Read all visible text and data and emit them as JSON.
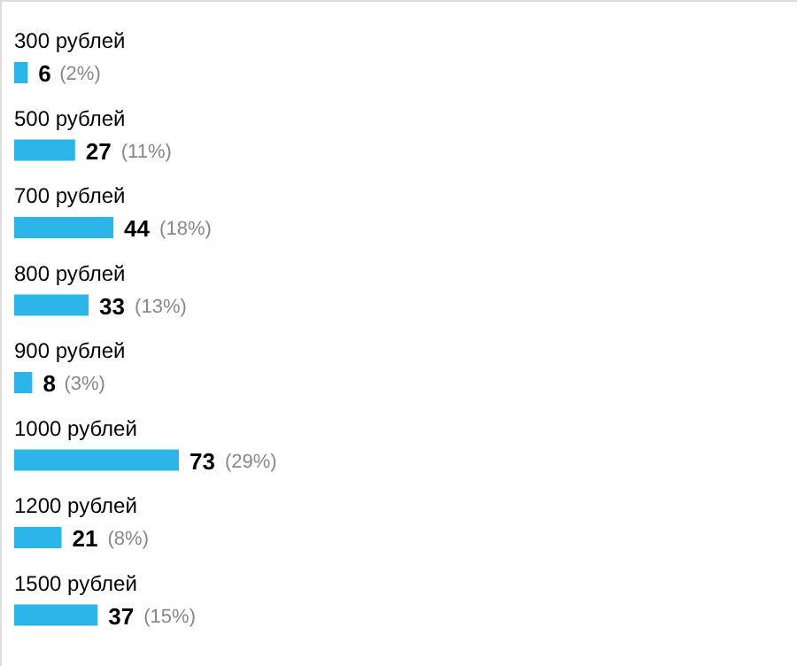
{
  "chart_data": {
    "type": "bar",
    "orientation": "horizontal",
    "categories": [
      "300 рублей",
      "500 рублей",
      "700 рублей",
      "800 рублей",
      "900 рублей",
      "1000 рублей",
      "1200 рублей",
      "1500 рублей"
    ],
    "values": [
      6,
      27,
      44,
      33,
      8,
      73,
      21,
      37
    ],
    "value_labels": [
      "6 (2%)",
      "27 (11%)",
      "44 (18%)",
      "33 (13%)",
      "8 (3%)",
      "73 (29%)",
      "21 (8%)",
      "37 (15%)"
    ],
    "color": "#2bb5e8"
  }
}
